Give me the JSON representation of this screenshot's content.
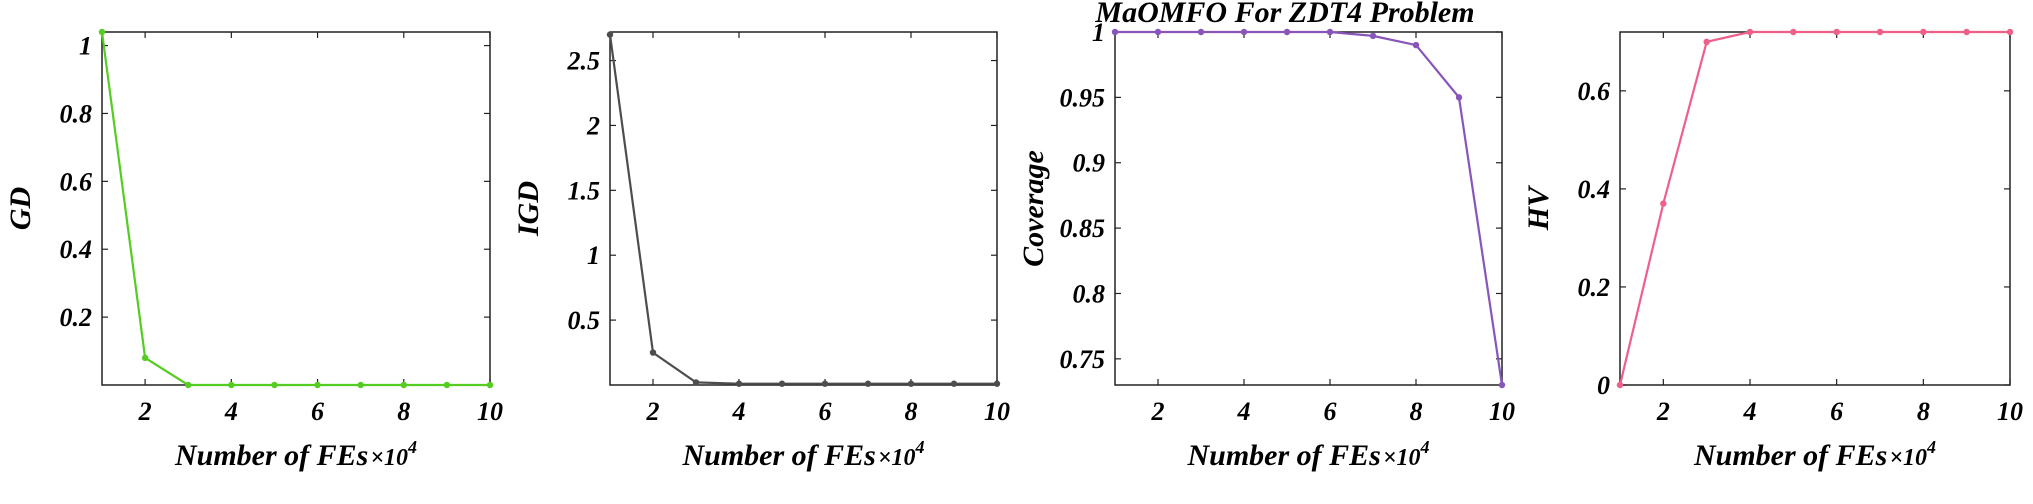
{
  "figure_title": "MaOMFO For ZDT4 Problem",
  "chart_data": [
    {
      "type": "line",
      "ylabel": "GD",
      "xlabel": "Number of FEs",
      "xlabel_unit": "×10",
      "xlabel_exp": "4",
      "color": "#55cc22",
      "x": [
        1,
        2,
        3,
        4,
        5,
        6,
        7,
        8,
        9,
        10
      ],
      "values": [
        1.04,
        0.08,
        0.0,
        0.0,
        0.0,
        0.0,
        0.0,
        0.0,
        0.0,
        0.0
      ],
      "xlim": [
        1,
        10
      ],
      "ylim": [
        0,
        1.04
      ],
      "xticks": [
        2,
        4,
        6,
        8,
        10
      ],
      "xtick_labels": [
        "2",
        "4",
        "6",
        "8",
        "10"
      ],
      "yticks": [
        0.2,
        0.4,
        0.6,
        0.8,
        1
      ],
      "ytick_labels": [
        "0.2",
        "0.4",
        "0.6",
        "0.8",
        "1"
      ],
      "grid": false
    },
    {
      "type": "line",
      "ylabel": "IGD",
      "xlabel": "Number of FEs",
      "xlabel_unit": "×10",
      "xlabel_exp": "4",
      "color": "#4d4d4d",
      "x": [
        1,
        2,
        3,
        4,
        5,
        6,
        7,
        8,
        9,
        10
      ],
      "values": [
        2.7,
        0.25,
        0.02,
        0.01,
        0.01,
        0.01,
        0.01,
        0.01,
        0.01,
        0.01
      ],
      "xlim": [
        1,
        10
      ],
      "ylim": [
        0,
        2.72
      ],
      "xticks": [
        2,
        4,
        6,
        8,
        10
      ],
      "xtick_labels": [
        "2",
        "4",
        "6",
        "8",
        "10"
      ],
      "yticks": [
        0.5,
        1,
        1.5,
        2,
        2.5
      ],
      "ytick_labels": [
        "0.5",
        "1",
        "1.5",
        "2",
        "2.5"
      ],
      "grid": false
    },
    {
      "type": "line",
      "ylabel": "Coverage",
      "xlabel": "Number of FEs",
      "xlabel_unit": "×10",
      "xlabel_exp": "4",
      "color": "#8855bb",
      "x": [
        1,
        2,
        3,
        4,
        5,
        6,
        7,
        8,
        9,
        10
      ],
      "values": [
        1.0,
        1.0,
        1.0,
        1.0,
        1.0,
        1.0,
        0.997,
        0.99,
        0.95,
        0.73
      ],
      "xlim": [
        1,
        10
      ],
      "ylim": [
        0.73,
        1.0
      ],
      "xticks": [
        2,
        4,
        6,
        8,
        10
      ],
      "xtick_labels": [
        "2",
        "4",
        "6",
        "8",
        "10"
      ],
      "yticks": [
        0.75,
        0.8,
        0.85,
        0.9,
        0.95,
        1
      ],
      "ytick_labels": [
        "0.75",
        "0.8",
        "0.85",
        "0.9",
        "0.95",
        "1"
      ],
      "grid": false
    },
    {
      "type": "line",
      "ylabel": "HV",
      "xlabel": "Number of FEs",
      "xlabel_unit": "×10",
      "xlabel_exp": "4",
      "color": "#ee5f8a",
      "x": [
        1,
        2,
        3,
        4,
        5,
        6,
        7,
        8,
        9,
        10
      ],
      "values": [
        0.0,
        0.37,
        0.7,
        0.72,
        0.72,
        0.72,
        0.72,
        0.72,
        0.72,
        0.72
      ],
      "xlim": [
        1,
        10
      ],
      "ylim": [
        0,
        0.72
      ],
      "xticks": [
        2,
        4,
        6,
        8,
        10
      ],
      "xtick_labels": [
        "2",
        "4",
        "6",
        "8",
        "10"
      ],
      "yticks": [
        0,
        0.2,
        0.4,
        0.6
      ],
      "ytick_labels": [
        "0",
        "0.2",
        "0.4",
        "0.6"
      ],
      "grid": false
    }
  ]
}
